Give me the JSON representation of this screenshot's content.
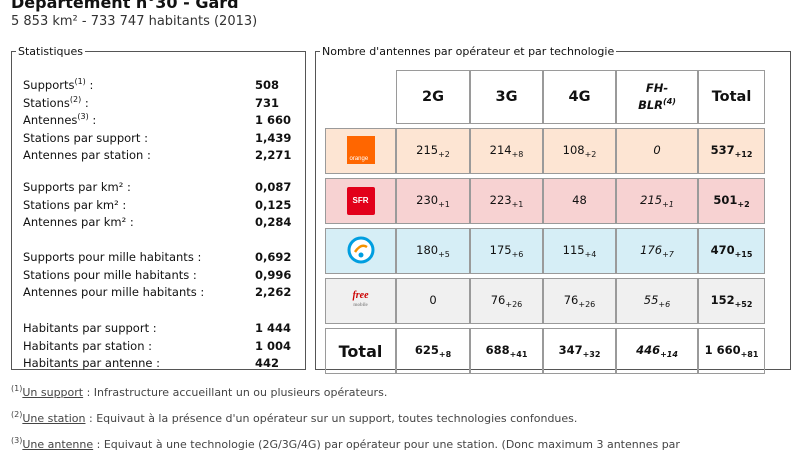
{
  "header": {
    "title": "Département n°30 - Gard",
    "subtitle": "5 853 km² - 733 747 habitants (2013)"
  },
  "stats": {
    "legend": "Statistiques",
    "groups": [
      {
        "rows": [
          {
            "label": "Supports",
            "sup": "(1)",
            "suffix": " :",
            "value": "508"
          },
          {
            "label": "Stations",
            "sup": "(2)",
            "suffix": " :",
            "value": "731"
          },
          {
            "label": "Antennes",
            "sup": "(3)",
            "suffix": " :",
            "value": "1 660"
          },
          {
            "label": "Stations par support :",
            "sup": "",
            "suffix": "",
            "value": "1,439"
          },
          {
            "label": "Antennes par station :",
            "sup": "",
            "suffix": "",
            "value": "2,271"
          }
        ]
      },
      {
        "rows": [
          {
            "label": "Supports par km² :",
            "value": "0,087"
          },
          {
            "label": "Stations par km² :",
            "value": "0,125"
          },
          {
            "label": "Antennes par km² :",
            "value": "0,284"
          }
        ]
      },
      {
        "rows": [
          {
            "label": "Supports pour mille habitants :",
            "value": "0,692"
          },
          {
            "label": "Stations pour mille habitants :",
            "value": "0,996"
          },
          {
            "label": "Antennes pour mille habitants :",
            "value": "2,262"
          }
        ]
      },
      {
        "rows": [
          {
            "label": "Habitants par support :",
            "value": "1 444"
          },
          {
            "label": "Habitants par station :",
            "value": "1 004"
          },
          {
            "label": "Habitants par antenne :",
            "value": "442"
          }
        ]
      }
    ]
  },
  "antennas": {
    "legend": "Nombre d'antennes par opérateur et par technologie",
    "headers": {
      "c2g": "2G",
      "c3g": "3G",
      "c4g": "4G",
      "fh": "FH-",
      "blr": "BLR",
      "blr_sup": "(4)",
      "total": "Total"
    },
    "operators": [
      {
        "logo": "orange",
        "logo_text": "orange",
        "c2g": "215",
        "c2g_d": "+2",
        "c3g": "214",
        "c3g_d": "+8",
        "c4g": "108",
        "c4g_d": "+2",
        "fh": "0",
        "fh_d": "",
        "total": "537",
        "total_d": "+12"
      },
      {
        "logo": "sfr",
        "logo_text": "SFR",
        "c2g": "230",
        "c2g_d": "+1",
        "c3g": "223",
        "c3g_d": "+1",
        "c4g": "48",
        "c4g_d": "",
        "fh": "215",
        "fh_d": "+1",
        "total": "501",
        "total_d": "+2"
      },
      {
        "logo": "bouygues",
        "logo_text": "",
        "c2g": "180",
        "c2g_d": "+5",
        "c3g": "175",
        "c3g_d": "+6",
        "c4g": "115",
        "c4g_d": "+4",
        "fh": "176",
        "fh_d": "+7",
        "total": "470",
        "total_d": "+15"
      },
      {
        "logo": "free",
        "logo_text": "free",
        "logo_sub": "mobile",
        "c2g": "0",
        "c2g_d": "",
        "c3g": "76",
        "c3g_d": "+26",
        "c4g": "76",
        "c4g_d": "+26",
        "fh": "55",
        "fh_d": "+6",
        "total": "152",
        "total_d": "+52"
      }
    ],
    "totals": {
      "label": "Total",
      "c2g": "625",
      "c2g_d": "+8",
      "c3g": "688",
      "c3g_d": "+41",
      "c4g": "347",
      "c4g_d": "+32",
      "fh": "446",
      "fh_d": "+14",
      "total": "1 660",
      "total_d": "+81"
    }
  },
  "footnotes": [
    {
      "sup": "(1)",
      "term": "Un support",
      "text": " : Infrastructure accueillant un ou plusieurs opérateurs."
    },
    {
      "sup": "(2)",
      "term": "Une station",
      "text": " : Equivaut à la présence d'un opérateur sur un support, toutes technologies confondues."
    },
    {
      "sup": "(3)",
      "term": "Une antenne",
      "text": " : Equivaut à une technologie (2G/3G/4G) par opérateur pour une station. (Donc maximum 3 antennes par"
    }
  ],
  "colors": {
    "orange": "#ff6600",
    "sfr": "#e2001a",
    "bouygues": "#009ee0",
    "free": "#cc0000"
  }
}
